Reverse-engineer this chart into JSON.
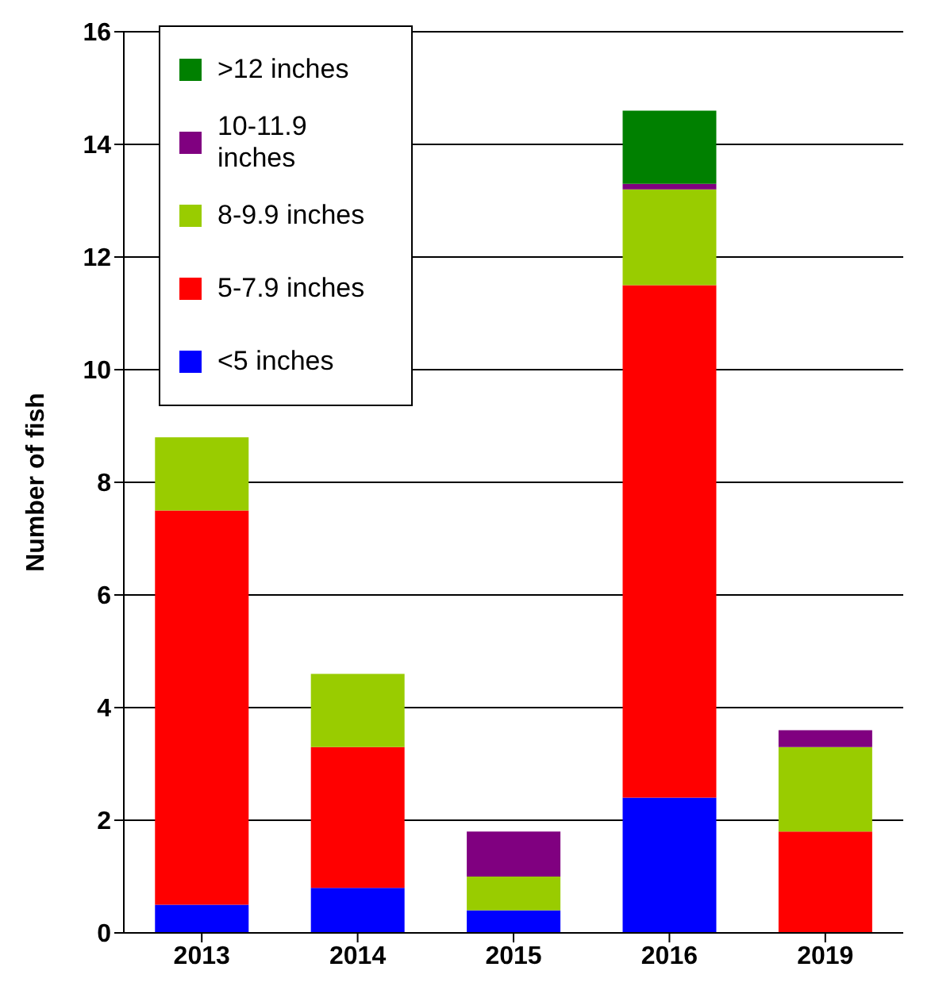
{
  "chart_data": {
    "type": "bar",
    "stacked": true,
    "ylabel": "Number of fish",
    "categories": [
      "2013",
      "2014",
      "2015",
      "2016",
      "2019"
    ],
    "series": [
      {
        "name": "<5 inches",
        "color": "#0000ff",
        "values": [
          0.5,
          0.8,
          0.4,
          2.4,
          0
        ]
      },
      {
        "name": "5-7.9 inches",
        "color": "#ff0000",
        "values": [
          7.0,
          2.5,
          0,
          9.1,
          1.8
        ]
      },
      {
        "name": "8-9.9 inches",
        "color": "#99cc00",
        "values": [
          1.3,
          1.3,
          0.6,
          1.7,
          1.5
        ]
      },
      {
        "name": "10-11.9 inches",
        "color": "#800080",
        "values": [
          0,
          0,
          0.8,
          0.1,
          0.3
        ]
      },
      {
        "name": ">12 inches",
        "color": "#008000",
        "values": [
          0,
          0,
          0,
          1.3,
          0
        ]
      }
    ],
    "ylim": [
      0,
      16
    ],
    "yticks": [
      0,
      2,
      4,
      6,
      8,
      10,
      12,
      14,
      16
    ],
    "grid": "y",
    "legend": "top left"
  }
}
